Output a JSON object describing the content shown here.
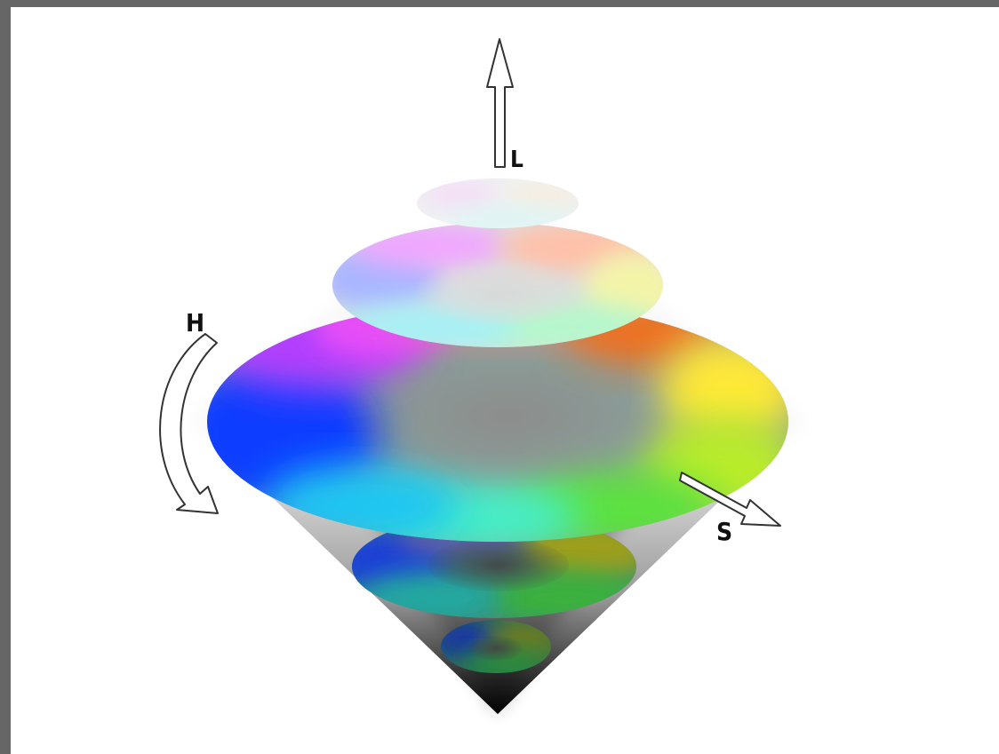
{
  "colors": {
    "frame": "#666666",
    "canvas": "#ffffff",
    "outline": "#333333",
    "label": "#111111"
  },
  "diagram": {
    "axes": {
      "lightness_label": "L",
      "hue_label": "H",
      "saturation_label": "S"
    },
    "slices": [
      {
        "name": "top-white-slice"
      },
      {
        "name": "upper-light-slice"
      },
      {
        "name": "mid-full-saturation-slice"
      },
      {
        "name": "lower-dark-slice"
      },
      {
        "name": "bottom-darker-slice"
      }
    ]
  }
}
